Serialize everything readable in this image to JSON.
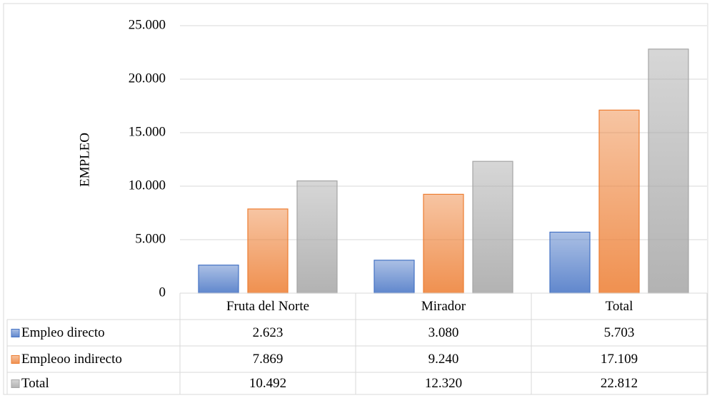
{
  "chart_data": {
    "type": "bar",
    "y_label": "EMPLEO",
    "categories": [
      "Fruta del Norte",
      "Mirador",
      "Total"
    ],
    "series": [
      {
        "name": "Empleo directo",
        "color": "#4472c4",
        "values": [
          2623,
          3080,
          5703
        ],
        "value_labels": [
          "2.623",
          "3.080",
          "5.703"
        ]
      },
      {
        "name": "Empleoo indirecto",
        "color": "#ed7d31",
        "values": [
          7869,
          9240,
          17109
        ],
        "value_labels": [
          "7.869",
          "9.240",
          "17.109"
        ]
      },
      {
        "name": "Total",
        "color": "#a5a5a5",
        "values": [
          10492,
          12320,
          22812
        ],
        "value_labels": [
          "10.492",
          "12.320",
          "22.812"
        ]
      }
    ],
    "ylim": [
      0,
      25000
    ],
    "yticks": [
      0,
      {
        "value": 5000,
        "label": "5.000"
      },
      {
        "value": 10000,
        "label": "10.000"
      },
      {
        "value": 15000,
        "label": "15.000"
      },
      {
        "value": 20000,
        "label": "20.000"
      },
      {
        "value": 25000,
        "label": "25.000"
      }
    ],
    "grid": true,
    "data_table": true
  }
}
